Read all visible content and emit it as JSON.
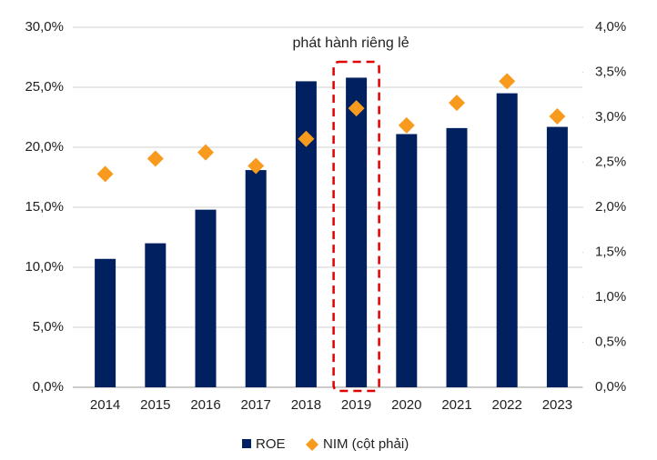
{
  "chart_data": {
    "type": "bar",
    "annotation": "phát hành riêng lẻ",
    "highlight": "2019",
    "categories": [
      "2014",
      "2015",
      "2016",
      "2017",
      "2018",
      "2019",
      "2020",
      "2021",
      "2022",
      "2023"
    ],
    "series": [
      {
        "name": "ROE",
        "color": "#002060",
        "values": [
          10.7,
          12.0,
          14.8,
          18.1,
          25.5,
          25.8,
          21.1,
          21.6,
          24.5,
          21.7
        ]
      },
      {
        "name": "NIM (cột phải)",
        "color": "#f79a1e",
        "axis": "y2",
        "values": [
          2.37,
          2.54,
          2.61,
          2.46,
          2.76,
          3.1,
          2.91,
          3.16,
          3.4,
          3.01
        ]
      }
    ],
    "ylim": [
      0,
      30
    ],
    "yticks": [
      {
        "value": 0,
        "label": "0,0%"
      },
      {
        "value": 5,
        "label": "5,0%"
      },
      {
        "value": 10,
        "label": "10,0%"
      },
      {
        "value": 15,
        "label": "15,0%"
      },
      {
        "value": 20,
        "label": "20,0%"
      },
      {
        "value": 25,
        "label": "25,0%"
      },
      {
        "value": 30,
        "label": "30,0%"
      }
    ],
    "y2lim": [
      0,
      4
    ],
    "y2ticks": [
      {
        "value": 0,
        "label": "0,0%"
      },
      {
        "value": 0.5,
        "label": "0,5%"
      },
      {
        "value": 1,
        "label": "1,0%"
      },
      {
        "value": 1.5,
        "label": "1,5%"
      },
      {
        "value": 2,
        "label": "2,0%"
      },
      {
        "value": 2.5,
        "label": "2,5%"
      },
      {
        "value": 3,
        "label": "3,0%"
      },
      {
        "value": 3.5,
        "label": "3,5%"
      },
      {
        "value": 4,
        "label": "4,0%"
      }
    ],
    "grid": true
  }
}
